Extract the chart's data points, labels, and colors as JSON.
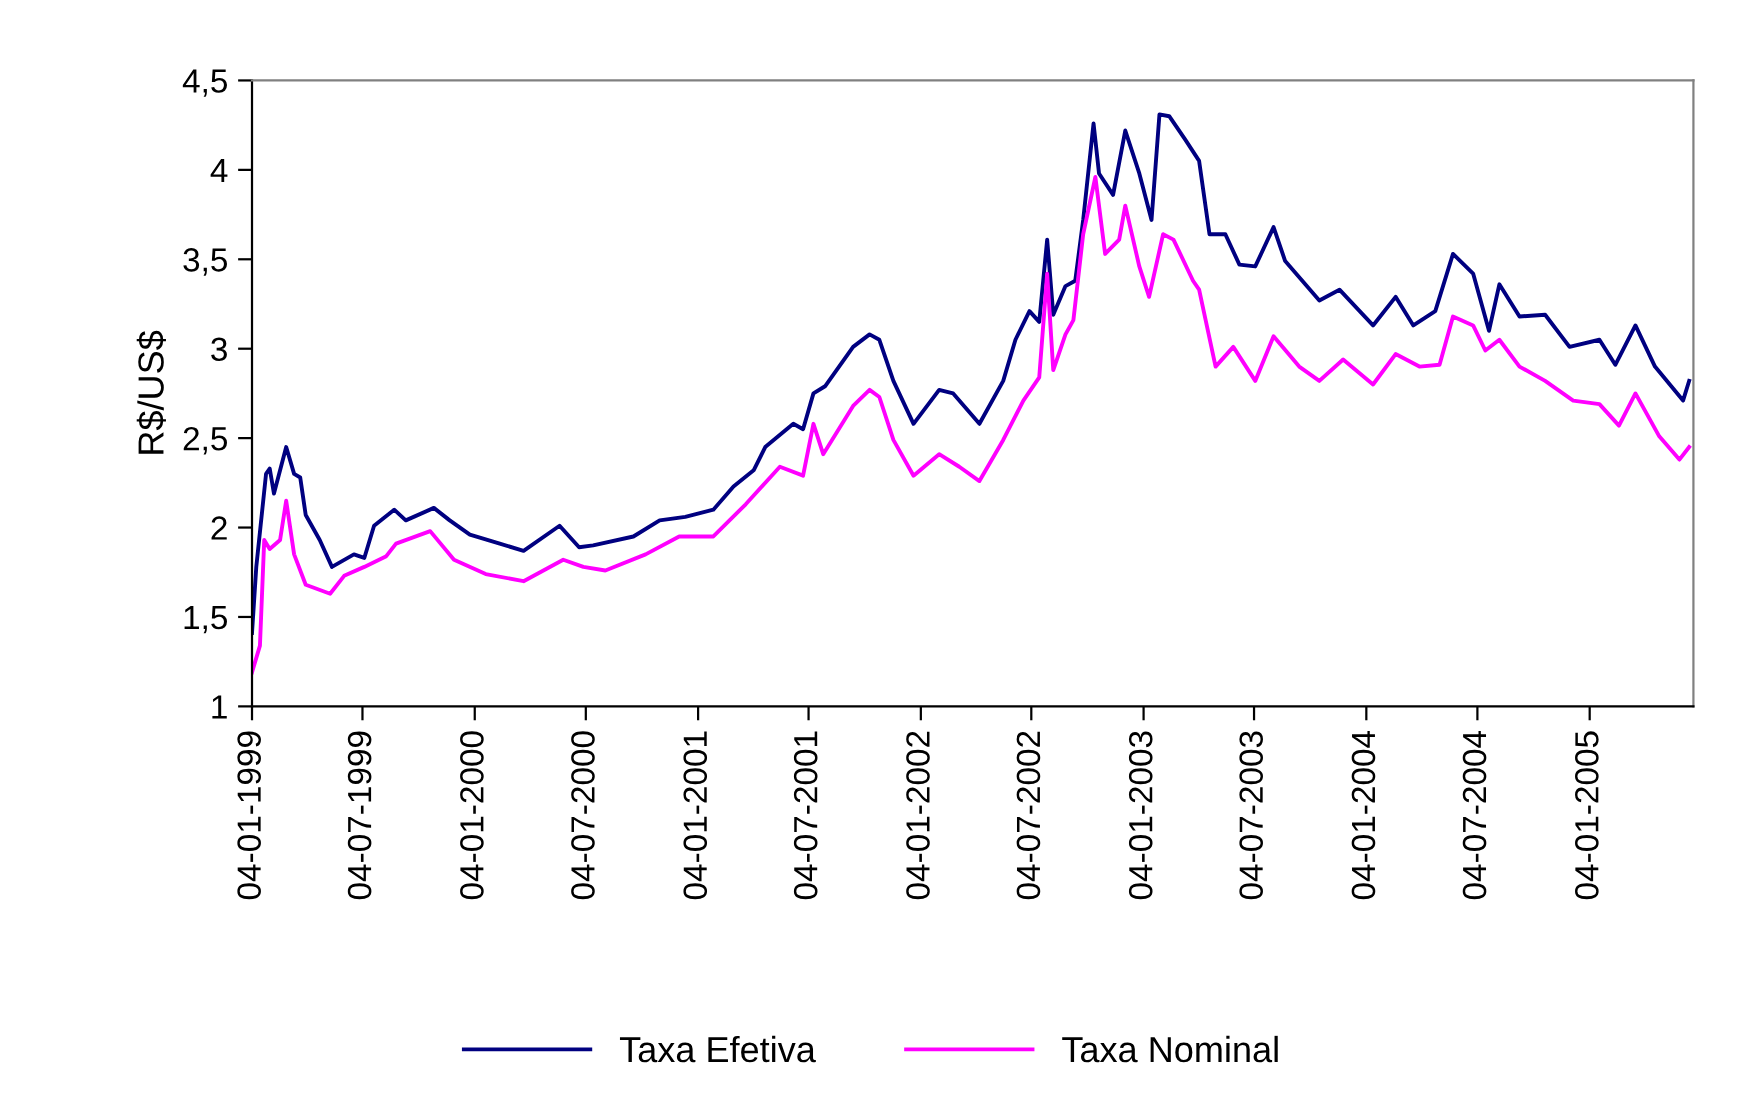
{
  "chart_data": {
    "type": "line",
    "ylabel": "R$/US$",
    "legend": "bottom",
    "grid": false,
    "xlim": [
      "1999-01-04",
      "2005-06-23"
    ],
    "xticks": [
      {
        "value": "1999-01-04",
        "label": "04-01-1999"
      },
      {
        "value": "1999-07-04",
        "label": "04-07-1999"
      },
      {
        "value": "2000-01-04",
        "label": "04-01-2000"
      },
      {
        "value": "2000-07-04",
        "label": "04-07-2000"
      },
      {
        "value": "2001-01-04",
        "label": "04-01-2001"
      },
      {
        "value": "2001-07-04",
        "label": "04-07-2001"
      },
      {
        "value": "2002-01-04",
        "label": "04-01-2002"
      },
      {
        "value": "2002-07-04",
        "label": "04-07-2002"
      },
      {
        "value": "2003-01-04",
        "label": "04-01-2003"
      },
      {
        "value": "2003-07-04",
        "label": "04-07-2003"
      },
      {
        "value": "2004-01-04",
        "label": "04-01-2004"
      },
      {
        "value": "2004-07-04",
        "label": "04-07-2004"
      },
      {
        "value": "2005-01-04",
        "label": "04-01-2005"
      }
    ],
    "ylim": [
      1,
      4.5
    ],
    "yticks": [
      1,
      {
        "value": 1.5,
        "label": "1,5"
      },
      2,
      {
        "value": 2.5,
        "label": "2,5"
      },
      3,
      {
        "value": 3.5,
        "label": "3,5"
      },
      4,
      {
        "value": 4.5,
        "label": "4,5"
      }
    ],
    "series": [
      {
        "name": "Taxa Efetiva",
        "color": "#000080",
        "x": [
          "1999-01-04",
          "1999-01-11",
          "1999-01-27",
          "1999-02-02",
          "1999-02-09",
          "1999-03-01",
          "1999-03-14",
          "1999-03-24",
          "1999-04-02",
          "1999-04-25",
          "1999-05-15",
          "1999-06-20",
          "1999-07-07",
          "1999-07-23",
          "1999-08-25",
          "1999-09-13",
          "1999-10-29",
          "1999-11-24",
          "1999-12-27",
          "2000-02-14",
          "2000-03-24",
          "2000-05-22",
          "2000-06-23",
          "2000-07-16",
          "2000-09-20",
          "2000-11-02",
          "2000-12-14",
          "2001-01-29",
          "2001-03-03",
          "2001-04-05",
          "2001-04-24",
          "2001-06-09",
          "2001-06-25",
          "2001-07-12",
          "2001-07-31",
          "2001-09-15",
          "2001-10-12",
          "2001-10-28",
          "2001-11-20",
          "2001-12-23",
          "2002-02-03",
          "2002-02-26",
          "2002-04-10",
          "2002-05-19",
          "2002-06-08",
          "2002-07-01",
          "2002-07-17",
          "2002-07-30",
          "2002-08-09",
          "2002-08-29",
          "2002-09-14",
          "2002-09-27",
          "2002-10-14",
          "2002-10-23",
          "2002-11-15",
          "2002-12-05",
          "2002-12-28",
          "2003-01-17",
          "2003-01-30",
          "2003-02-15",
          "2003-03-13",
          "2003-04-05",
          "2003-04-22",
          "2003-05-18",
          "2003-06-10",
          "2003-07-06",
          "2003-08-05",
          "2003-08-24",
          "2003-10-19",
          "2003-11-21",
          "2004-01-15",
          "2004-02-21",
          "2004-03-21",
          "2004-04-26",
          "2004-05-25",
          "2004-06-27",
          "2004-07-23",
          "2004-08-09",
          "2004-09-11",
          "2004-10-23",
          "2004-12-02",
          "2005-01-20",
          "2005-02-15",
          "2005-03-20",
          "2005-04-21",
          "2005-06-06",
          "2005-06-16"
        ],
        "values": [
          1.41,
          1.78,
          2.3,
          2.33,
          2.19,
          2.45,
          2.3,
          2.28,
          2.07,
          1.93,
          1.78,
          1.85,
          1.83,
          2.01,
          2.1,
          2.04,
          2.11,
          2.04,
          1.96,
          1.91,
          1.87,
          2.01,
          1.89,
          1.9,
          1.95,
          2.04,
          2.06,
          2.1,
          2.23,
          2.32,
          2.45,
          2.58,
          2.55,
          2.75,
          2.79,
          3.01,
          3.08,
          3.05,
          2.82,
          2.58,
          2.77,
          2.75,
          2.58,
          2.82,
          3.05,
          3.21,
          3.15,
          3.61,
          3.19,
          3.35,
          3.38,
          3.72,
          4.26,
          3.98,
          3.86,
          4.22,
          3.98,
          3.72,
          4.31,
          4.3,
          4.17,
          4.05,
          3.64,
          3.64,
          3.47,
          3.46,
          3.68,
          3.49,
          3.27,
          3.33,
          3.13,
          3.29,
          3.13,
          3.21,
          3.53,
          3.42,
          3.1,
          3.36,
          3.18,
          3.19,
          3.01,
          3.05,
          2.91,
          3.13,
          2.9,
          2.71,
          2.82
        ]
      },
      {
        "name": "Taxa Nominal",
        "color": "#ff00ff",
        "x": [
          "1999-01-04",
          "1999-01-17",
          "1999-01-24",
          "1999-02-02",
          "1999-02-19",
          "1999-03-01",
          "1999-03-14",
          "1999-04-02",
          "1999-05-12",
          "1999-06-04",
          "1999-07-07",
          "1999-08-12",
          "1999-08-28",
          "1999-10-23",
          "1999-12-01",
          "2000-01-22",
          "2000-03-24",
          "2000-05-28",
          "2000-06-30",
          "2000-08-05",
          "2000-10-10",
          "2000-12-04",
          "2001-01-29",
          "2001-03-23",
          "2001-05-18",
          "2001-06-25",
          "2001-07-12",
          "2001-07-28",
          "2001-09-15",
          "2001-10-12",
          "2001-10-28",
          "2001-11-20",
          "2001-12-23",
          "2002-02-03",
          "2002-03-08",
          "2002-04-10",
          "2002-05-19",
          "2002-06-21",
          "2002-07-17",
          "2002-07-30",
          "2002-08-09",
          "2002-08-29",
          "2002-09-11",
          "2002-09-27",
          "2002-10-17",
          "2002-11-02",
          "2002-11-25",
          "2002-12-05",
          "2002-12-28",
          "2003-01-13",
          "2003-02-05",
          "2003-02-22",
          "2003-03-26",
          "2003-04-05",
          "2003-05-02",
          "2003-05-31",
          "2003-07-06",
          "2003-08-05",
          "2003-09-16",
          "2003-10-19",
          "2003-11-27",
          "2004-01-15",
          "2004-02-21",
          "2004-03-31",
          "2004-05-03",
          "2004-05-25",
          "2004-06-27",
          "2004-07-17",
          "2004-08-09",
          "2004-09-11",
          "2004-10-23",
          "2004-12-08",
          "2005-01-20",
          "2005-02-21",
          "2005-03-20",
          "2005-04-28",
          "2005-05-31",
          "2005-06-16"
        ],
        "values": [
          1.19,
          1.34,
          1.93,
          1.88,
          1.93,
          2.15,
          1.85,
          1.68,
          1.63,
          1.73,
          1.78,
          1.84,
          1.91,
          1.98,
          1.82,
          1.74,
          1.7,
          1.82,
          1.78,
          1.76,
          1.85,
          1.95,
          1.95,
          2.13,
          2.34,
          2.29,
          2.58,
          2.41,
          2.68,
          2.77,
          2.73,
          2.49,
          2.29,
          2.41,
          2.34,
          2.26,
          2.49,
          2.71,
          2.84,
          3.42,
          2.88,
          3.08,
          3.16,
          3.64,
          3.96,
          3.53,
          3.61,
          3.8,
          3.46,
          3.29,
          3.64,
          3.61,
          3.38,
          3.33,
          2.9,
          3.01,
          2.82,
          3.07,
          2.9,
          2.82,
          2.94,
          2.8,
          2.97,
          2.9,
          2.91,
          3.18,
          3.13,
          2.99,
          3.05,
          2.9,
          2.82,
          2.71,
          2.69,
          2.57,
          2.75,
          2.51,
          2.38,
          2.45
        ]
      }
    ]
  }
}
